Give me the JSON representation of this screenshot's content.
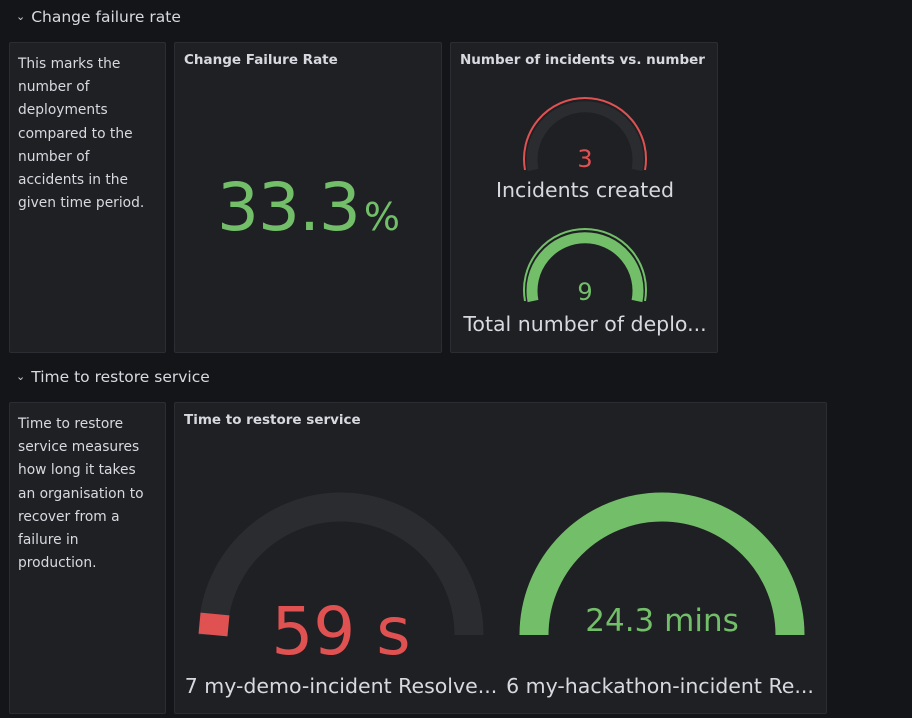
{
  "colors": {
    "bg": "#141518",
    "panel": "#1f2024",
    "green": "#73bf69",
    "red": "#e05252",
    "gauge_track": "#2b2c30"
  },
  "rows": {
    "cfr": {
      "title": "Change failure rate",
      "chevron": "chevron-down-icon"
    },
    "ttr": {
      "title": "Time to restore service",
      "chevron": "chevron-down-icon"
    }
  },
  "cfr_desc": {
    "text": "This marks the number of deployments compared to the number of accidents in the given time period."
  },
  "cfr_stat": {
    "title": "Change Failure Rate",
    "value": "33.3",
    "unit": "%"
  },
  "incidents_panel": {
    "title": "Number of incidents vs. number",
    "gauges": [
      {
        "value": "3",
        "label": "Incidents created",
        "color": "#e05252",
        "fill": 0.0
      },
      {
        "value": "9",
        "label": "Total number of deplo...",
        "color": "#73bf69",
        "fill": 1.0
      }
    ]
  },
  "ttr_desc": {
    "text": "Time to restore service measures how long it takes an organisation to recover from a failure in production."
  },
  "ttr_panel": {
    "title": "Time to restore service",
    "gauges": [
      {
        "value": "59 s",
        "label": "7 my-demo-incident Resolve...",
        "color": "#e05252",
        "fill": 0.02
      },
      {
        "value": "24.3 mins",
        "label": "6 my-hackathon-incident Re...",
        "color": "#73bf69",
        "fill": 1.0
      }
    ]
  }
}
